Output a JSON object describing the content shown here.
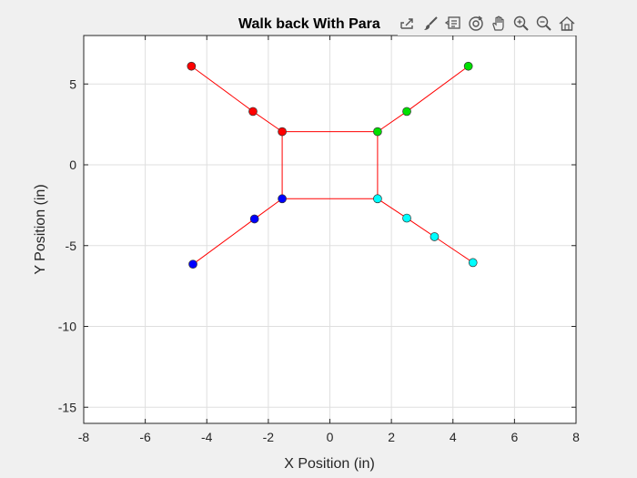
{
  "chart_data": {
    "type": "scatter",
    "title": "Walk back With Para",
    "xlabel": "X Position (in)",
    "ylabel": "Y Position (in)",
    "xlim": [
      -8,
      8
    ],
    "ylim": [
      -16,
      8
    ],
    "xticks": [
      -8,
      -6,
      -4,
      -2,
      0,
      2,
      4,
      6,
      8
    ],
    "yticks": [
      -15,
      -10,
      -5,
      0,
      5
    ],
    "grid": true,
    "line_color": "#ff0000",
    "frame": [
      [
        -1.55,
        2.05
      ],
      [
        1.55,
        2.05
      ],
      [
        1.55,
        -2.1
      ],
      [
        -1.55,
        -2.1
      ]
    ],
    "legs": [
      {
        "color": "#ff0000",
        "points": [
          [
            -1.55,
            2.05
          ],
          [
            -2.5,
            3.3
          ],
          [
            -4.5,
            6.1
          ]
        ]
      },
      {
        "color": "#00e000",
        "points": [
          [
            1.55,
            2.05
          ],
          [
            2.5,
            3.3
          ],
          [
            4.5,
            6.1
          ]
        ]
      },
      {
        "color": "#0000ff",
        "points": [
          [
            -1.55,
            -2.1
          ],
          [
            -2.45,
            -3.35
          ],
          [
            -4.45,
            -6.15
          ]
        ]
      },
      {
        "color": "#00ffff",
        "points": [
          [
            1.55,
            -2.1
          ],
          [
            2.5,
            -3.3
          ],
          [
            3.4,
            -4.45
          ],
          [
            4.65,
            -6.05
          ]
        ]
      }
    ]
  },
  "toolbar": {
    "icons": [
      "export-icon",
      "brush-icon",
      "data-tips-icon",
      "rotate-icon",
      "pan-icon",
      "zoom-in-icon",
      "zoom-out-icon",
      "home-icon"
    ]
  }
}
